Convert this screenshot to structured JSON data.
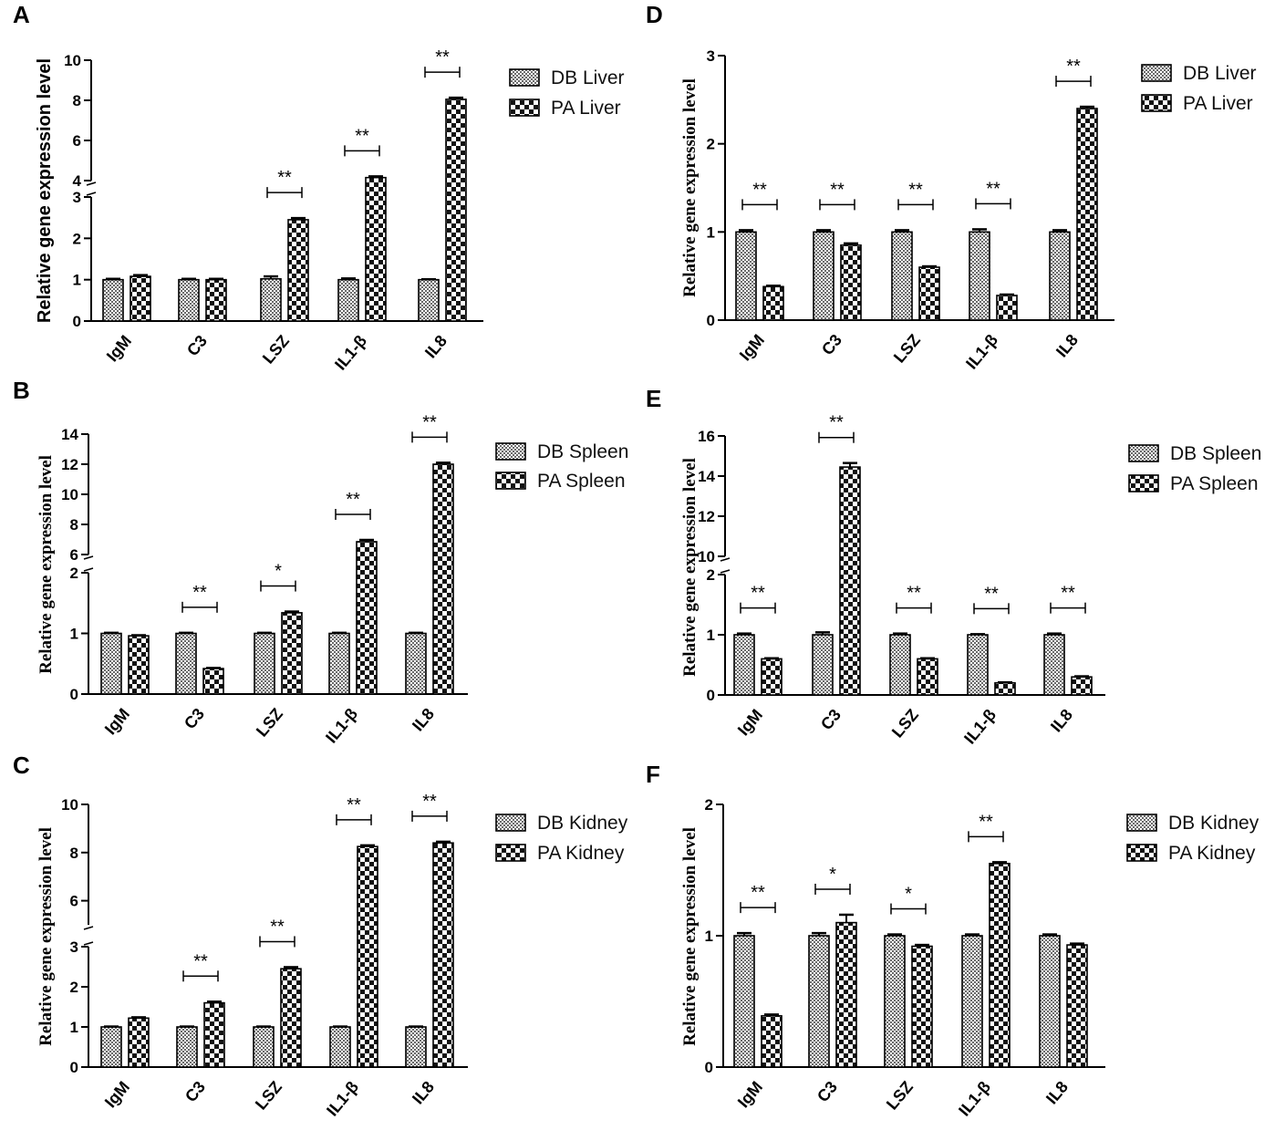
{
  "chart_data": [
    {
      "panel": "A",
      "type": "bar",
      "ylabel": "Relative gene expression level",
      "categories": [
        "IgM",
        "C3",
        "LSZ",
        "IL1-β",
        "IL8"
      ],
      "series": [
        {
          "name": "DB Liver",
          "values": [
            1,
            1,
            1.02,
            1,
            1
          ],
          "errors": [
            0.02,
            0.02,
            0.06,
            0.03,
            0.01
          ]
        },
        {
          "name": "PA Liver",
          "values": [
            1.08,
            1,
            2.45,
            4.15,
            8.05
          ],
          "errors": [
            0.03,
            0.02,
            0.04,
            0.06,
            0.08
          ]
        }
      ],
      "significance": [
        "",
        "",
        "**",
        "**",
        "**"
      ],
      "y_axis_segments": [
        {
          "range": [
            0,
            3
          ],
          "ticks": [
            0,
            1,
            2,
            3
          ]
        },
        {
          "range": [
            4,
            10
          ],
          "ticks": [
            4,
            6,
            8,
            10
          ]
        }
      ],
      "legend_position": "top-right"
    },
    {
      "panel": "B",
      "type": "bar",
      "ylabel": "Relative gene expression level",
      "categories": [
        "IgM",
        "C3",
        "LSZ",
        "IL1-β",
        "IL8"
      ],
      "series": [
        {
          "name": "DB Spleen",
          "values": [
            1,
            1,
            1,
            1,
            1
          ],
          "errors": [
            0.01,
            0.01,
            0.01,
            0.01,
            0.01
          ]
        },
        {
          "name": "PA Spleen",
          "values": [
            0.96,
            0.42,
            1.34,
            6.85,
            12
          ],
          "errors": [
            0.01,
            0.01,
            0.02,
            0.12,
            0.1
          ]
        }
      ],
      "significance": [
        "",
        "**",
        "*",
        "**",
        "**"
      ],
      "y_axis_segments": [
        {
          "range": [
            0,
            2
          ],
          "ticks": [
            0,
            1,
            2
          ]
        },
        {
          "range": [
            6,
            14
          ],
          "ticks": [
            6,
            8,
            10,
            12,
            14
          ]
        }
      ],
      "legend_position": "top-right"
    },
    {
      "panel": "C",
      "type": "bar",
      "ylabel": "Relative gene expression level",
      "categories": [
        "IgM",
        "C3",
        "LSZ",
        "IL1-β",
        "IL8"
      ],
      "series": [
        {
          "name": "DB Kidney",
          "values": [
            1,
            1,
            1,
            1,
            1
          ],
          "errors": [
            0.01,
            0.01,
            0.01,
            0.01,
            0.01
          ]
        },
        {
          "name": "PA Kidney",
          "values": [
            1.22,
            1.6,
            2.45,
            8.25,
            8.4
          ],
          "errors": [
            0.02,
            0.03,
            0.04,
            0.05,
            0.05
          ]
        }
      ],
      "significance": [
        "",
        "**",
        "**",
        "**",
        "**"
      ],
      "y_axis_segments": [
        {
          "range": [
            0,
            3
          ],
          "ticks": [
            0,
            1,
            2,
            3
          ]
        },
        {
          "range": [
            5,
            10
          ],
          "ticks": [
            6,
            8,
            10
          ]
        }
      ],
      "legend_position": "top-right"
    },
    {
      "panel": "D",
      "type": "bar",
      "ylabel": "Relative gene expression level",
      "categories": [
        "IgM",
        "C3",
        "LSZ",
        "IL1-β",
        "IL8"
      ],
      "series": [
        {
          "name": "DB Liver",
          "values": [
            1,
            1,
            1,
            1,
            1
          ],
          "errors": [
            0.02,
            0.02,
            0.02,
            0.03,
            0.02
          ]
        },
        {
          "name": "PA Liver",
          "values": [
            0.38,
            0.85,
            0.6,
            0.28,
            2.4
          ],
          "errors": [
            0.01,
            0.02,
            0.01,
            0.01,
            0.02
          ]
        }
      ],
      "significance": [
        "**",
        "**",
        "**",
        "**",
        "**"
      ],
      "y_axis_segments": [
        {
          "range": [
            0,
            3
          ],
          "ticks": [
            0,
            1,
            2,
            3
          ]
        }
      ],
      "legend_position": "top-right"
    },
    {
      "panel": "E",
      "type": "bar",
      "ylabel": "Relative gene expression level",
      "categories": [
        "IgM",
        "C3",
        "LSZ",
        "IL1-β",
        "IL8"
      ],
      "series": [
        {
          "name": "DB Spleen",
          "values": [
            1,
            1,
            1,
            1,
            1
          ],
          "errors": [
            0.02,
            0.04,
            0.02,
            0.01,
            0.02
          ]
        },
        {
          "name": "PA Spleen",
          "values": [
            0.6,
            14.45,
            0.6,
            0.2,
            0.3
          ],
          "errors": [
            0.01,
            0.2,
            0.01,
            0.01,
            0.01
          ]
        }
      ],
      "significance": [
        "**",
        "**",
        "**",
        "**",
        "**"
      ],
      "y_axis_segments": [
        {
          "range": [
            0,
            2
          ],
          "ticks": [
            0,
            1,
            2
          ]
        },
        {
          "range": [
            10,
            16
          ],
          "ticks": [
            10,
            12,
            14,
            16
          ]
        }
      ],
      "legend_position": "top-right"
    },
    {
      "panel": "F",
      "type": "bar",
      "ylabel": "Relative gene expression level",
      "categories": [
        "IgM",
        "C3",
        "LSZ",
        "IL1-β",
        "IL8"
      ],
      "series": [
        {
          "name": "DB Kidney",
          "values": [
            1,
            1,
            1,
            1,
            1
          ],
          "errors": [
            0.02,
            0.02,
            0.01,
            0.01,
            0.01
          ]
        },
        {
          "name": "PA Kidney",
          "values": [
            0.39,
            1.1,
            0.92,
            1.55,
            0.93
          ],
          "errors": [
            0.01,
            0.06,
            0.01,
            0.01,
            0.01
          ]
        }
      ],
      "significance": [
        "**",
        "*",
        "*",
        "**",
        ""
      ],
      "y_axis_segments": [
        {
          "range": [
            0,
            2
          ],
          "ticks": [
            0,
            1,
            2
          ]
        }
      ],
      "legend_position": "top-right"
    }
  ]
}
